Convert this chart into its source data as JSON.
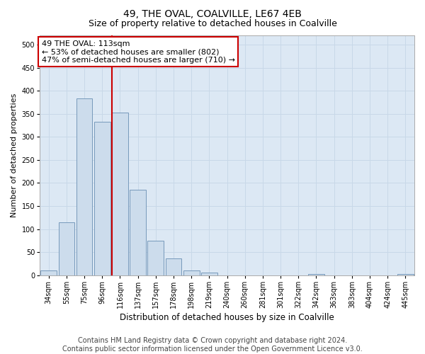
{
  "title": "49, THE OVAL, COALVILLE, LE67 4EB",
  "subtitle": "Size of property relative to detached houses in Coalville",
  "xlabel": "Distribution of detached houses by size in Coalville",
  "ylabel": "Number of detached properties",
  "categories": [
    "34sqm",
    "55sqm",
    "75sqm",
    "96sqm",
    "116sqm",
    "137sqm",
    "157sqm",
    "178sqm",
    "198sqm",
    "219sqm",
    "240sqm",
    "260sqm",
    "281sqm",
    "301sqm",
    "322sqm",
    "342sqm",
    "363sqm",
    "383sqm",
    "404sqm",
    "424sqm",
    "445sqm"
  ],
  "values": [
    10,
    115,
    383,
    333,
    353,
    185,
    75,
    37,
    10,
    6,
    0,
    0,
    0,
    0,
    0,
    3,
    0,
    0,
    0,
    0,
    3
  ],
  "bar_color": "#ccdcec",
  "bar_edge_color": "#7799bb",
  "marker_line_color": "#cc0000",
  "marker_line_index": 4,
  "annotation_text": "49 THE OVAL: 113sqm\n← 53% of detached houses are smaller (802)\n47% of semi-detached houses are larger (710) →",
  "annotation_box_facecolor": "#ffffff",
  "annotation_box_edgecolor": "#cc0000",
  "ylim": [
    0,
    520
  ],
  "yticks": [
    0,
    50,
    100,
    150,
    200,
    250,
    300,
    350,
    400,
    450,
    500
  ],
  "grid_color": "#c8d8e8",
  "background_color": "#dce8f4",
  "footer_line1": "Contains HM Land Registry data © Crown copyright and database right 2024.",
  "footer_line2": "Contains public sector information licensed under the Open Government Licence v3.0.",
  "title_fontsize": 10,
  "subtitle_fontsize": 9,
  "xlabel_fontsize": 8.5,
  "ylabel_fontsize": 8,
  "tick_fontsize": 7,
  "annotation_fontsize": 8,
  "footer_fontsize": 7
}
